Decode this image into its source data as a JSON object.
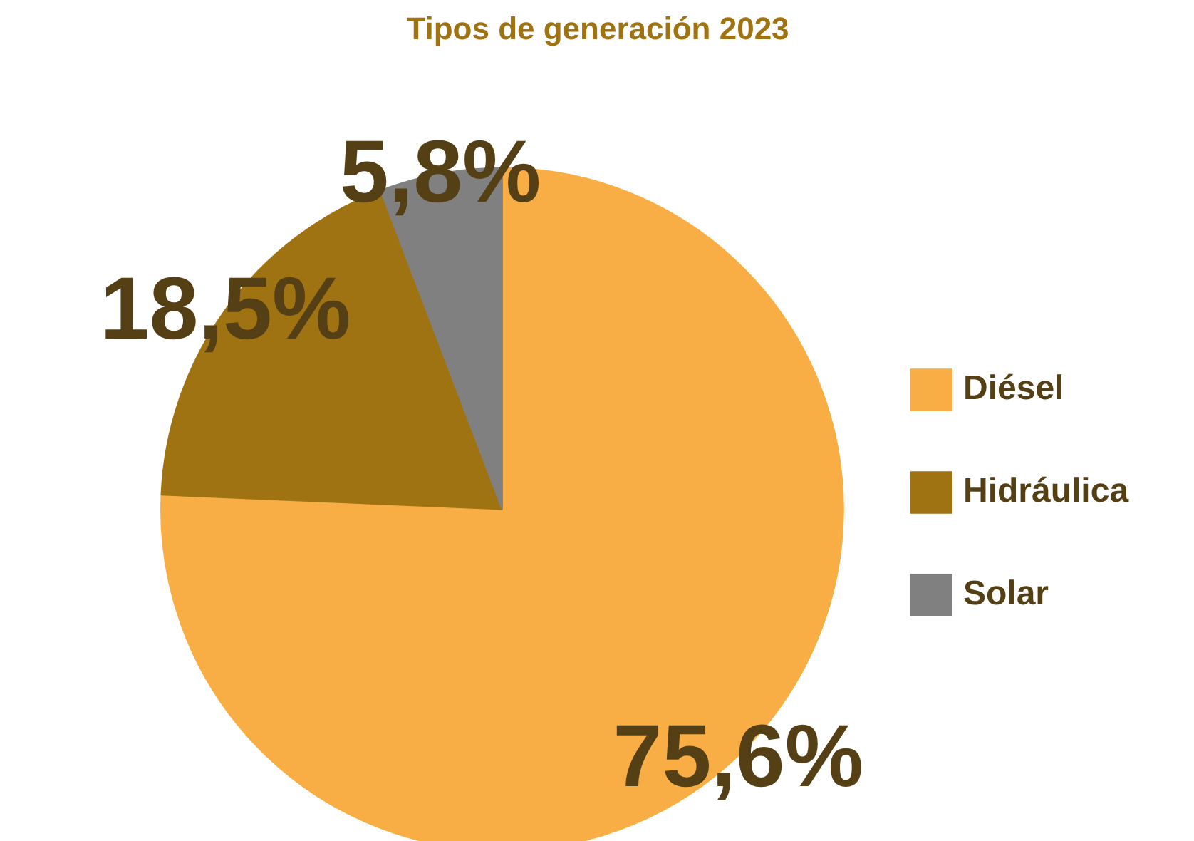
{
  "chart_data": {
    "type": "pie",
    "title": "Tipos de generación 2023",
    "categories": [
      "Diésel",
      "Hidráulica",
      "Solar"
    ],
    "values": [
      75.6,
      18.5,
      5.8
    ],
    "colors": [
      "#f9ae45",
      "#a07312",
      "#808080"
    ],
    "value_labels": [
      "75,6%",
      "18,5%",
      "5,8%"
    ],
    "legend": "right"
  }
}
